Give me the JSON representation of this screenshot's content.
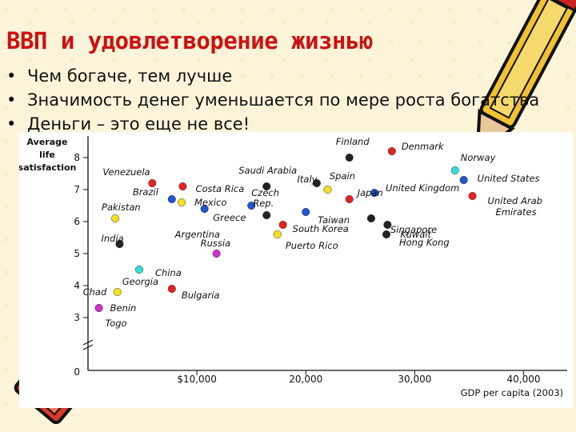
{
  "slide": {
    "title": "ВВП и удовлетворение жизнью",
    "bullets": [
      "Чем богаче, тем лучше",
      "Значимость денег уменьшается по мере роста богатства",
      "Деньги – это еще не все!"
    ]
  },
  "chart_data": {
    "type": "scatter",
    "title": "",
    "ylabel_lines": [
      "Average",
      "life",
      "satisfaction"
    ],
    "xlabel": "GDP per capita (2003)",
    "xlim": [
      0,
      44000
    ],
    "ylim": [
      2.5,
      8.5
    ],
    "y_ticks": [
      "8",
      "7",
      "6",
      "5",
      "4",
      "3"
    ],
    "y_tick_values": [
      8,
      7,
      6,
      5,
      4,
      3
    ],
    "zero_label": "0",
    "x_ticks": [
      "$10,000",
      "20,000",
      "30,000",
      "40,000"
    ],
    "x_tick_values": [
      10000,
      20000,
      30000,
      40000
    ],
    "points": [
      {
        "label": "Chad",
        "x": 1000,
        "y": 3.3,
        "color": "#cc33cc"
      },
      {
        "label": "Benin",
        "x": 1000,
        "y": 3.3,
        "color": "#cc33cc"
      },
      {
        "label": "Togo",
        "x": 1000,
        "y": 3.3,
        "color": "#cc33cc"
      },
      {
        "label": "Georgia",
        "x": 2700,
        "y": 3.8,
        "color": "#f5e020"
      },
      {
        "label": "Bulgaria",
        "x": 7700,
        "y": 3.9,
        "color": "#e52222"
      },
      {
        "label": "China",
        "x": 4700,
        "y": 4.5,
        "color": "#33dddd"
      },
      {
        "label": "India",
        "x": 2900,
        "y": 5.3,
        "color": "#222222"
      },
      {
        "label": "Pakistan",
        "x": 2500,
        "y": 6.1,
        "color": "#f5e020"
      },
      {
        "label": "Venezuela",
        "x": 5900,
        "y": 7.2,
        "color": "#e52222"
      },
      {
        "label": "Brazil",
        "x": 7700,
        "y": 6.7,
        "color": "#2255cc"
      },
      {
        "label": "Mexico",
        "x": 8600,
        "y": 6.6,
        "color": "#f5e020"
      },
      {
        "label": "Costa Rica",
        "x": 8700,
        "y": 7.1,
        "color": "#e52222"
      },
      {
        "label": "Argentina",
        "x": 10700,
        "y": 6.4,
        "color": "#2255cc"
      },
      {
        "label": "Russia",
        "x": 11800,
        "y": 5.0,
        "color": "#cc33cc"
      },
      {
        "label": "Greece",
        "x": 15000,
        "y": 6.5,
        "color": "#2255cc"
      },
      {
        "label": "Saudi Arabia",
        "x": 16400,
        "y": 7.1,
        "color": "#222222"
      },
      {
        "label": "Czech Rep.",
        "x": 16400,
        "y": 6.2,
        "color": "#222222"
      },
      {
        "label": "South Korea",
        "x": 17900,
        "y": 5.9,
        "color": "#e52222"
      },
      {
        "label": "Puerto Rico",
        "x": 17400,
        "y": 5.6,
        "color": "#f5e020"
      },
      {
        "label": "Taiwan",
        "x": 20000,
        "y": 6.3,
        "color": "#2255cc"
      },
      {
        "label": "Spain",
        "x": 21000,
        "y": 7.2,
        "color": "#222222"
      },
      {
        "label": "Italy",
        "x": 22000,
        "y": 7.0,
        "color": "#f5e020"
      },
      {
        "label": "Finland",
        "x": 24000,
        "y": 8.0,
        "color": "#222222"
      },
      {
        "label": "Japan",
        "x": 24000,
        "y": 6.7,
        "color": "#e52222"
      },
      {
        "label": "Denmark",
        "x": 27900,
        "y": 8.2,
        "color": "#e52222"
      },
      {
        "label": "United Kingdom",
        "x": 26300,
        "y": 6.9,
        "color": "#2255cc"
      },
      {
        "label": "Singapore",
        "x": 26000,
        "y": 6.1,
        "color": "#222222"
      },
      {
        "label": "Kuwait",
        "x": 27500,
        "y": 5.9,
        "color": "#222222"
      },
      {
        "label": "Hong Kong",
        "x": 27400,
        "y": 5.6,
        "color": "#222222"
      },
      {
        "label": "Norway",
        "x": 33700,
        "y": 7.6,
        "color": "#33dddd"
      },
      {
        "label": "United States",
        "x": 34500,
        "y": 7.3,
        "color": "#2255cc"
      },
      {
        "label": "United Arab Emirates",
        "x": 35300,
        "y": 6.8,
        "color": "#e52222"
      }
    ]
  }
}
